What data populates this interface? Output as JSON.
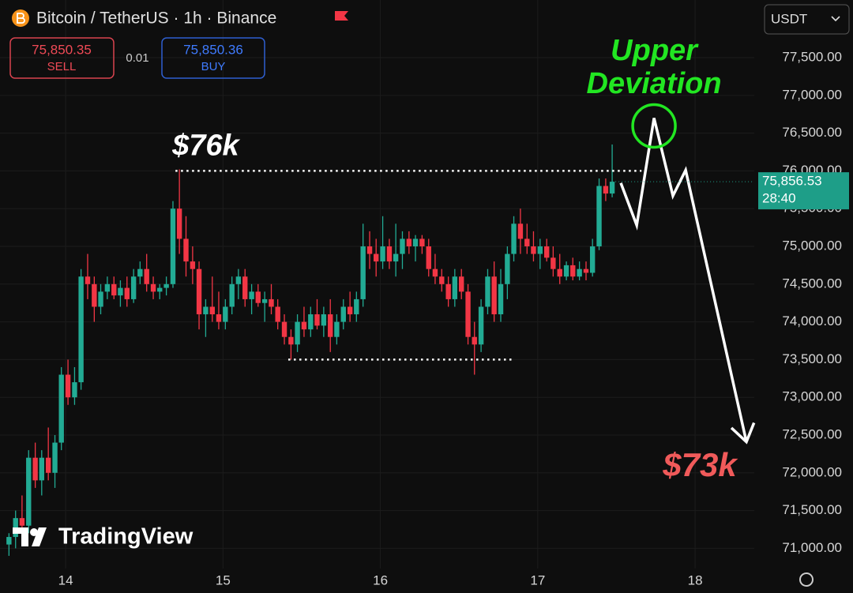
{
  "header": {
    "symbol": "Bitcoin / TetherUS · 1h · Binance",
    "sell_price": "75,850.35",
    "sell_label": "SELL",
    "quantity": "0.01",
    "buy_price": "75,850.36",
    "buy_label": "BUY",
    "currency": "USDT",
    "logo": "TradingView"
  },
  "chart_data": {
    "type": "candlestick",
    "x": [
      13.64,
      13.682,
      13.723,
      13.765,
      13.807,
      13.848,
      13.89,
      13.932,
      13.973,
      14.015,
      14.057,
      14.098,
      14.14,
      14.182,
      14.223,
      14.265,
      14.307,
      14.348,
      14.39,
      14.432,
      14.473,
      14.515,
      14.557,
      14.598,
      14.64,
      14.682,
      14.723,
      14.765,
      14.807,
      14.848,
      14.89,
      14.932,
      14.973,
      15.015,
      15.057,
      15.098,
      15.14,
      15.182,
      15.223,
      15.265,
      15.307,
      15.348,
      15.39,
      15.432,
      15.473,
      15.515,
      15.557,
      15.598,
      15.64,
      15.682,
      15.723,
      15.765,
      15.807,
      15.848,
      15.89,
      15.932,
      15.973,
      16.015,
      16.057,
      16.098,
      16.14,
      16.182,
      16.223,
      16.265,
      16.307,
      16.348,
      16.39,
      16.432,
      16.473,
      16.515,
      16.557,
      16.598,
      16.64,
      16.682,
      16.723,
      16.765,
      16.807,
      16.848,
      16.89,
      16.932,
      16.973,
      17.015,
      17.057,
      17.098,
      17.14,
      17.182,
      17.223,
      17.265,
      17.307,
      17.348,
      17.39,
      17.432,
      17.473
    ],
    "open": [
      71050,
      71150,
      71400,
      71300,
      72200,
      71900,
      72200,
      72000,
      72400,
      73300,
      73000,
      73200,
      74600,
      74500,
      74200,
      74400,
      74500,
      74350,
      74450,
      74300,
      74600,
      74700,
      74500,
      74400,
      74450,
      74500,
      75500,
      75100,
      74800,
      74700,
      74100,
      74200,
      74100,
      74000,
      74200,
      74500,
      74600,
      74300,
      74400,
      74250,
      74300,
      74200,
      74000,
      73800,
      73700,
      74000,
      73900,
      74100,
      73950,
      74100,
      73800,
      74000,
      74200,
      74100,
      74300,
      75000,
      74900,
      74800,
      75000,
      74800,
      74900,
      75100,
      75000,
      75100,
      75000,
      74700,
      74600,
      74500,
      74300,
      74600,
      74400,
      73800,
      73700,
      74200,
      74600,
      74100,
      74500,
      74900,
      75300,
      75100,
      75000,
      74900,
      75000,
      74850,
      74700,
      74600,
      74750,
      74600,
      74700,
      74650,
      75000,
      75800,
      75700
    ],
    "high": [
      71200,
      71500,
      71700,
      72300,
      72400,
      72300,
      72600,
      72500,
      73400,
      73500,
      73400,
      74700,
      74900,
      74600,
      74500,
      74600,
      74600,
      74550,
      74600,
      74700,
      74800,
      74900,
      74600,
      74500,
      74600,
      75600,
      76020,
      75400,
      75000,
      74800,
      74300,
      74600,
      74400,
      74300,
      74600,
      74700,
      74700,
      74500,
      74500,
      74400,
      74500,
      74300,
      74100,
      73900,
      74100,
      74200,
      74200,
      74300,
      74200,
      74300,
      74100,
      74300,
      74400,
      74400,
      75300,
      75200,
      75100,
      75400,
      75100,
      75300,
      75200,
      75200,
      75150,
      75150,
      75100,
      74900,
      74700,
      74600,
      74700,
      74700,
      74500,
      74000,
      74300,
      74700,
      74800,
      74700,
      75000,
      75400,
      75500,
      75300,
      75200,
      75100,
      75100,
      75000,
      74900,
      74800,
      74850,
      74800,
      74800,
      75100,
      75900,
      75900,
      76350
    ],
    "low": [
      70900,
      71000,
      71100,
      71200,
      71800,
      71700,
      71900,
      71800,
      72300,
      72900,
      72900,
      73100,
      74300,
      74000,
      74100,
      74300,
      74300,
      74200,
      74200,
      74250,
      74500,
      74400,
      74300,
      74300,
      74350,
      74450,
      74900,
      74600,
      74500,
      73900,
      73800,
      74000,
      73900,
      73900,
      74100,
      74300,
      74200,
      74100,
      74200,
      74000,
      74100,
      73900,
      73700,
      73500,
      73600,
      73800,
      73800,
      73900,
      73800,
      73600,
      73700,
      73900,
      74000,
      74000,
      74200,
      74700,
      74600,
      74700,
      74700,
      74600,
      74700,
      74900,
      74800,
      74900,
      74600,
      74500,
      74400,
      74200,
      74200,
      74300,
      73700,
      73300,
      73600,
      74100,
      74000,
      74000,
      74300,
      74800,
      74900,
      74900,
      74800,
      74700,
      74800,
      74600,
      74500,
      74550,
      74550,
      74550,
      74550,
      74600,
      74950,
      75600,
      75650
    ],
    "close": [
      71150,
      71400,
      71300,
      72200,
      71900,
      72200,
      72000,
      72400,
      73300,
      73000,
      73200,
      74600,
      74500,
      74200,
      74400,
      74500,
      74350,
      74450,
      74300,
      74600,
      74700,
      74500,
      74400,
      74450,
      74500,
      75500,
      75100,
      74800,
      74700,
      74100,
      74200,
      74100,
      74000,
      74200,
      74500,
      74600,
      74300,
      74400,
      74250,
      74300,
      74200,
      74000,
      73800,
      73700,
      74000,
      73900,
      74100,
      73950,
      74100,
      73800,
      74000,
      74200,
      74100,
      74300,
      75000,
      74900,
      74800,
      75000,
      74800,
      74900,
      75100,
      75000,
      75100,
      75000,
      74700,
      74600,
      74500,
      74300,
      74600,
      74400,
      73800,
      73700,
      74200,
      74600,
      74100,
      74500,
      74900,
      75300,
      75100,
      75000,
      74900,
      75000,
      74850,
      74700,
      74600,
      74750,
      74600,
      74700,
      74650,
      75000,
      75800,
      75700,
      75856.53
    ],
    "up_color": "#22ab94",
    "down_color": "#f23645",
    "xlim": [
      13.583,
      18.376
    ],
    "xticks": [
      14,
      15,
      16,
      17,
      18
    ],
    "ylim": [
      70732,
      78264
    ],
    "yticks": [
      {
        "value": 71000,
        "label": "71,000.00"
      },
      {
        "value": 71500,
        "label": "71,500.00"
      },
      {
        "value": 72000,
        "label": "72,000.00"
      },
      {
        "value": 72500,
        "label": "72,500.00"
      },
      {
        "value": 73000,
        "label": "73,000.00"
      },
      {
        "value": 73500,
        "label": "73,500.00"
      },
      {
        "value": 74000,
        "label": "74,000.00"
      },
      {
        "value": 74500,
        "label": "74,500.00"
      },
      {
        "value": 75000,
        "label": "75,000.00"
      },
      {
        "value": 75500,
        "label": "75,500.00"
      },
      {
        "value": 76000,
        "label": "76,000.00"
      },
      {
        "value": 76500,
        "label": "76,500.00"
      },
      {
        "value": 77000,
        "label": "77,000.00"
      },
      {
        "value": 77500,
        "label": "77,500.00"
      }
    ],
    "grid": true,
    "last_price": {
      "value": 75856.53,
      "label": "75,856.53",
      "countdown": "28:40",
      "color": "#1e9e88"
    },
    "levels": [
      {
        "y": 76000,
        "x": [
          14.698,
          17.659
        ]
      },
      {
        "y": 73500,
        "x": [
          15.415,
          16.836
        ]
      }
    ],
    "projection": {
      "x": [
        17.528,
        17.629,
        17.739,
        17.859,
        17.94,
        18.326
      ],
      "y": [
        75840,
        75280,
        76700,
        75670,
        76010,
        72410
      ]
    },
    "annotations": {
      "high_label": "$76k",
      "deviation": [
        "Upper",
        "Deviation"
      ],
      "target_label": "$73k"
    }
  }
}
